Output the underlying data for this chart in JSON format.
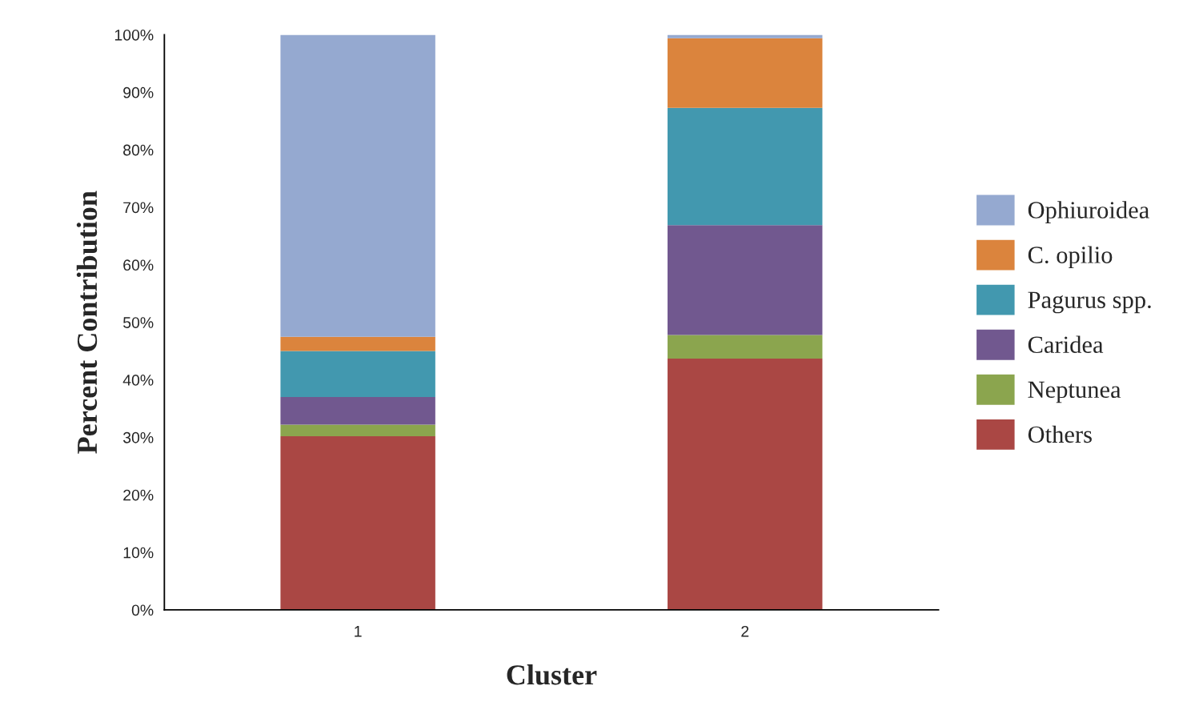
{
  "chart_data": {
    "type": "bar",
    "stacked": true,
    "xlabel": "Cluster",
    "ylabel": "Percent Contribution",
    "categories": [
      "1",
      "2"
    ],
    "series": [
      {
        "name": "Others",
        "color": "#aa4744",
        "values": [
          30.2,
          43.7
        ]
      },
      {
        "name": "Neptunea",
        "color": "#8ba54e",
        "values": [
          2.0,
          4.1
        ]
      },
      {
        "name": "Caridea",
        "color": "#71588f",
        "values": [
          4.8,
          19.1
        ]
      },
      {
        "name": "Pagurus spp.",
        "color": "#4298af",
        "values": [
          8.0,
          20.4
        ]
      },
      {
        "name": "C. opilio",
        "color": "#db843d",
        "values": [
          2.5,
          12.1
        ]
      },
      {
        "name": "Ophiuroidea",
        "color": "#95a9d0",
        "values": [
          52.5,
          0.6
        ]
      }
    ],
    "ylim": [
      0,
      100
    ],
    "yticks": [
      {
        "value": 0,
        "label": "0%"
      },
      {
        "value": 10,
        "label": "10%"
      },
      {
        "value": 20,
        "label": "20%"
      },
      {
        "value": 30,
        "label": "30%"
      },
      {
        "value": 40,
        "label": "40%"
      },
      {
        "value": 50,
        "label": "50%"
      },
      {
        "value": 60,
        "label": "60%"
      },
      {
        "value": 70,
        "label": "70%"
      },
      {
        "value": 80,
        "label": "80%"
      },
      {
        "value": 90,
        "label": "90%"
      },
      {
        "value": 100,
        "label": "100%"
      }
    ],
    "grid": false,
    "legend": "right"
  }
}
